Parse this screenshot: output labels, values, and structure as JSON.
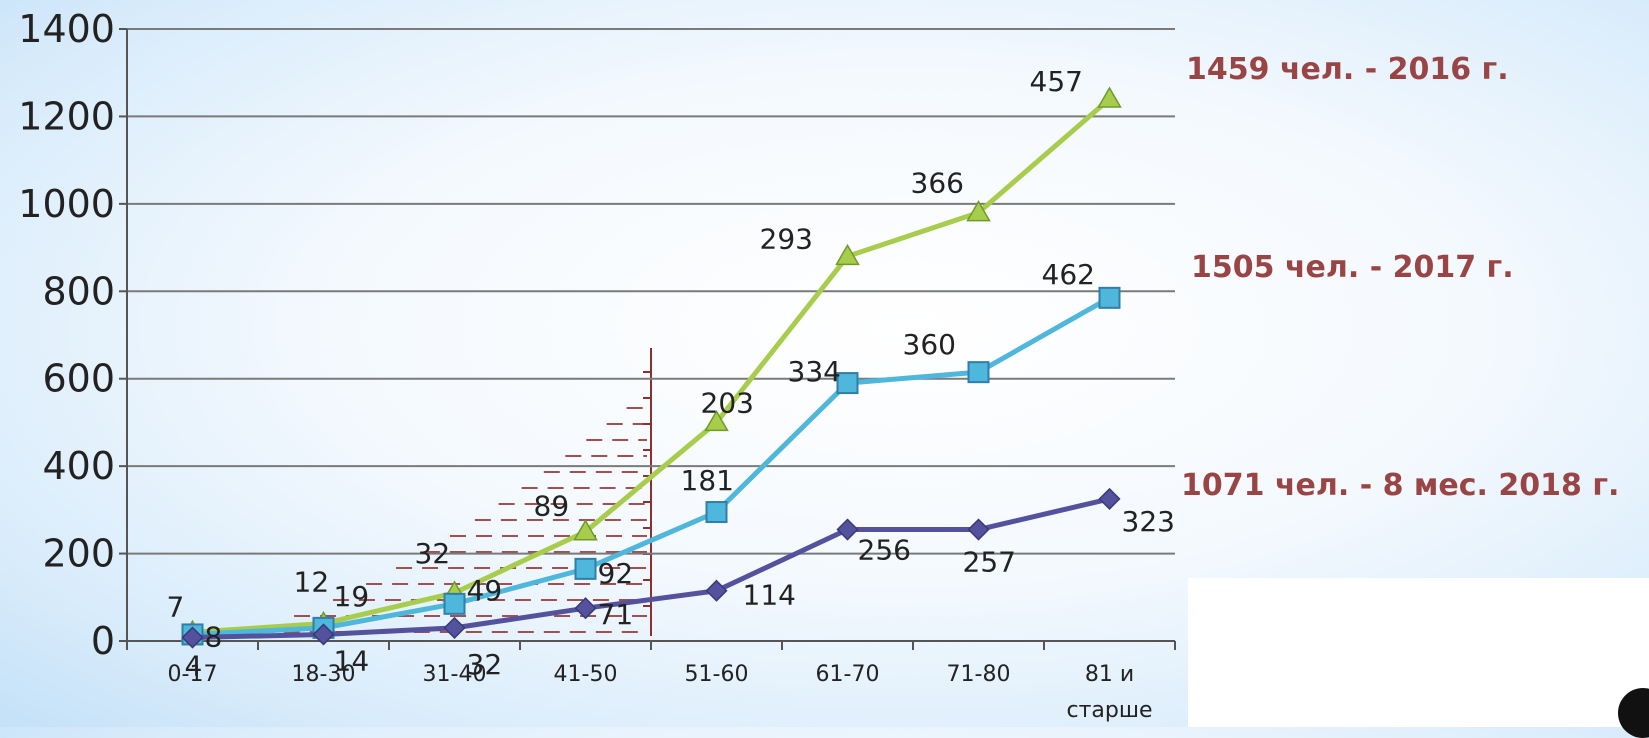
{
  "chart_data": {
    "type": "line",
    "categories": [
      "0-17",
      "18-30",
      "31-40",
      "41-50",
      "51-60",
      "61-70",
      "71-80",
      "81 и старше"
    ],
    "yticks": [
      "0",
      "200",
      "400",
      "600",
      "800",
      "1000",
      "1200",
      "1400"
    ],
    "ylim": [
      0,
      1400
    ],
    "grid": true,
    "series": [
      {
        "name": "1459 чел.  -  2016 г.",
        "color": "#a8cc4c",
        "marker": "triangle",
        "values": [
          20,
          40,
          110,
          250,
          500,
          880,
          980,
          1240
        ],
        "labels": [
          "7",
          "12",
          "32",
          "89",
          "203",
          "293",
          "366",
          "457"
        ]
      },
      {
        "name": "1505 чел. - 2017 г.",
        "color": "#4fb6dc",
        "marker": "square",
        "values": [
          15,
          30,
          85,
          165,
          295,
          590,
          615,
          785
        ],
        "labels": [
          "8",
          "19",
          "49",
          "92",
          "181",
          "334",
          "360",
          "462"
        ]
      },
      {
        "name": "1071 чел. - 8 мес. 2018 г.",
        "color": "#54529c",
        "marker": "diamond",
        "values": [
          8,
          15,
          30,
          75,
          115,
          255,
          255,
          325
        ],
        "labels": [
          "4",
          "14",
          "32",
          "71",
          "114",
          "256",
          "257",
          "323"
        ]
      }
    ]
  }
}
